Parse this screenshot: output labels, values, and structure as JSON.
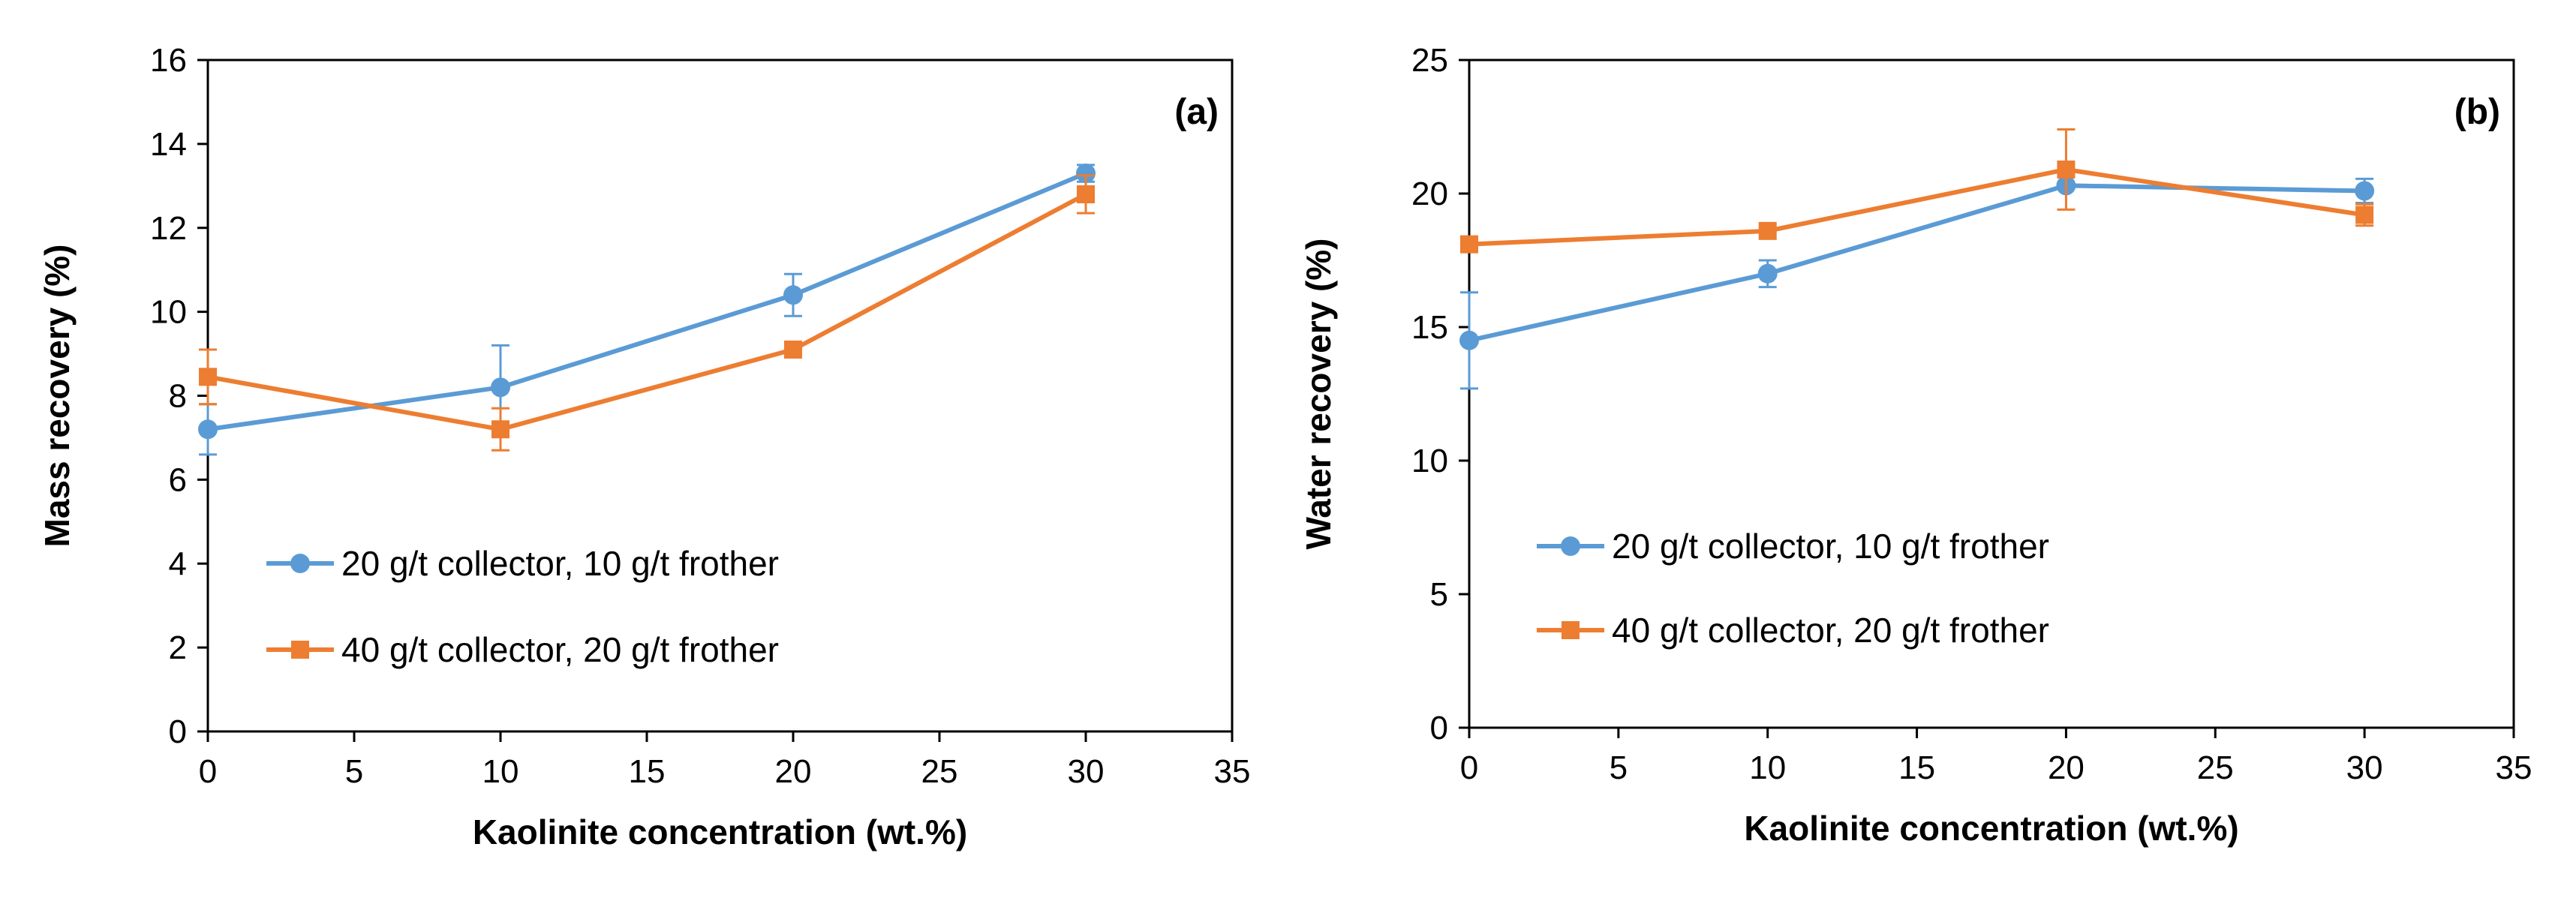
{
  "chart_data": [
    {
      "type": "line",
      "panel_label": "(a)",
      "xlabel": "Kaolinite concentration (wt.%)",
      "ylabel": "Mass recovery (%)",
      "xlim": [
        0,
        35
      ],
      "ylim": [
        0,
        16
      ],
      "xticks": [
        0,
        5,
        10,
        15,
        20,
        25,
        30,
        35
      ],
      "yticks": [
        0,
        2,
        4,
        6,
        8,
        10,
        12,
        14,
        16
      ],
      "grid": false,
      "legend_position": "lower-left",
      "x": [
        0,
        10,
        20,
        30
      ],
      "series": [
        {
          "name": "20 g/t collector, 10 g/t frother",
          "values": [
            7.2,
            8.2,
            10.4,
            13.3
          ],
          "error": [
            0.6,
            1.0,
            0.5,
            0.2
          ],
          "color": "#5b9bd5",
          "marker": "circle"
        },
        {
          "name": "40 g/t collector, 20 g/t frother",
          "values": [
            8.45,
            7.2,
            9.1,
            12.8
          ],
          "error": [
            0.65,
            0.5,
            0.0,
            0.45
          ],
          "color": "#ed7d31",
          "marker": "square"
        }
      ]
    },
    {
      "type": "line",
      "panel_label": "(b)",
      "xlabel": "Kaolinite concentration (wt.%)",
      "ylabel": "Water recovery (%)",
      "xlim": [
        0,
        35
      ],
      "ylim": [
        0,
        25
      ],
      "xticks": [
        0,
        5,
        10,
        15,
        20,
        25,
        30,
        35
      ],
      "yticks": [
        0,
        5,
        10,
        15,
        20,
        25
      ],
      "grid": false,
      "legend_position": "lower-left",
      "x": [
        0,
        10,
        20,
        30
      ],
      "series": [
        {
          "name": "20 g/t collector, 10 g/t frother",
          "values": [
            14.5,
            17.0,
            20.3,
            20.1
          ],
          "error": [
            1.8,
            0.5,
            0.0,
            0.45
          ],
          "color": "#5b9bd5",
          "marker": "circle"
        },
        {
          "name": "40 g/t collector, 20 g/t frother",
          "values": [
            18.1,
            18.6,
            20.9,
            19.2
          ],
          "error": [
            0.0,
            0.0,
            1.5,
            0.4
          ],
          "color": "#ed7d31",
          "marker": "square"
        }
      ]
    }
  ]
}
